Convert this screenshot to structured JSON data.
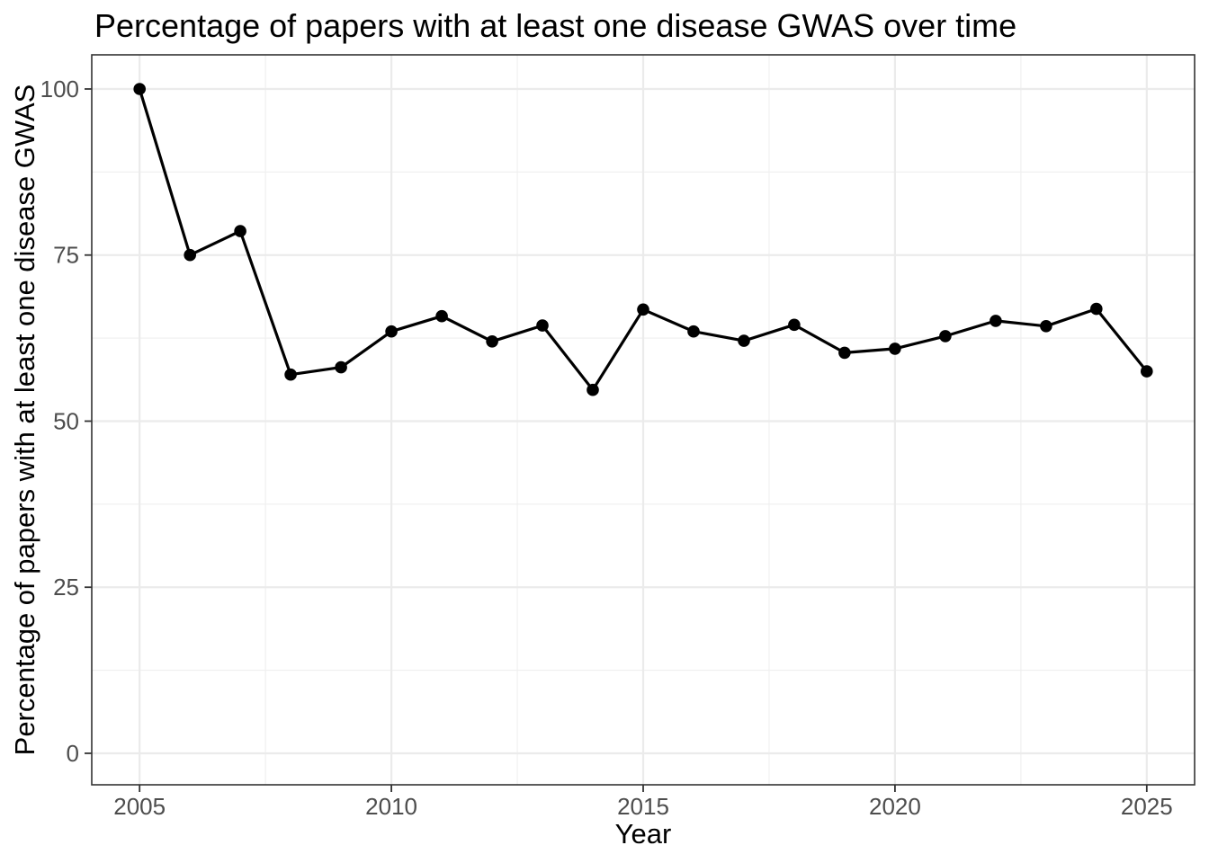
{
  "chart_data": {
    "type": "line",
    "title": "Percentage of papers with at least one disease GWAS over time",
    "xlabel": "Year",
    "ylabel": "Percentage of papers with at least one disease GWAS",
    "x": [
      2005,
      2006,
      2007,
      2008,
      2009,
      2010,
      2011,
      2012,
      2013,
      2014,
      2015,
      2016,
      2017,
      2018,
      2019,
      2020,
      2021,
      2022,
      2023,
      2024,
      2025
    ],
    "values": [
      100,
      75,
      78.6,
      57.0,
      58.1,
      63.5,
      65.8,
      62.0,
      64.4,
      54.7,
      66.8,
      63.5,
      62.1,
      64.5,
      60.3,
      60.9,
      62.8,
      65.1,
      64.3,
      66.9,
      57.5
    ],
    "series_name": "Percentage of papers with at least one disease GWAS",
    "x_ticks": [
      2005,
      2010,
      2015,
      2020,
      2025
    ],
    "y_ticks": [
      0,
      25,
      50,
      75,
      100
    ],
    "x_minor_gridlines": [
      2007.5,
      2012.5,
      2017.5,
      2022.5
    ],
    "y_minor_gridlines": [
      12.5,
      37.5,
      62.5,
      87.5
    ],
    "xlim": [
      2004.05,
      2025.95
    ],
    "ylim": [
      -4.74,
      105.14
    ],
    "grid": true,
    "legend_position": "none",
    "colors": {
      "line": "#000000",
      "point": "#000000",
      "grid_major": "#ebebeb",
      "grid_minor": "#efefef",
      "panel_border": "#333333",
      "tick_mark": "#333333",
      "tick_text": "#4d4d4d",
      "title_text": "#000000",
      "background": "#ffffff"
    }
  }
}
